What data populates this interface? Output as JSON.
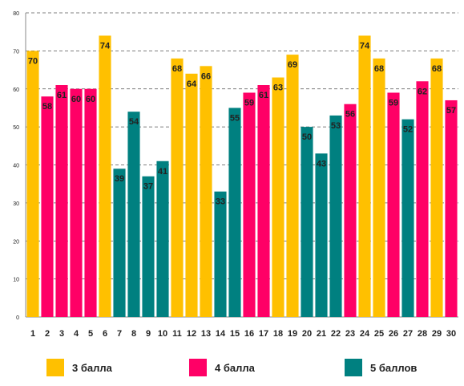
{
  "chart_data": {
    "type": "bar",
    "categories": [
      "1",
      "2",
      "3",
      "4",
      "5",
      "6",
      "7",
      "8",
      "9",
      "10",
      "11",
      "12",
      "13",
      "14",
      "15",
      "16",
      "17",
      "18",
      "19",
      "20",
      "21",
      "22",
      "23",
      "24",
      "25",
      "26",
      "27",
      "28",
      "29",
      "30"
    ],
    "values": [
      70,
      58,
      61,
      60,
      60,
      74,
      39,
      54,
      37,
      41,
      68,
      64,
      66,
      33,
      55,
      59,
      61,
      63,
      69,
      50,
      43,
      53,
      56,
      74,
      68,
      59,
      52,
      62,
      68,
      57
    ],
    "groups": [
      3,
      4,
      4,
      4,
      4,
      3,
      5,
      5,
      5,
      5,
      3,
      3,
      3,
      5,
      5,
      4,
      4,
      3,
      3,
      5,
      5,
      5,
      4,
      3,
      3,
      4,
      5,
      4,
      3,
      4
    ],
    "ylim": [
      0,
      80
    ],
    "yticks": [
      0,
      10,
      20,
      30,
      40,
      50,
      60,
      70,
      80
    ],
    "grid": "horizontal dashed",
    "legend_position": "bottom",
    "legend": [
      {
        "group": 3,
        "label": "3 балла",
        "color": "#FFC000"
      },
      {
        "group": 4,
        "label": "4 балла",
        "color": "#FF0066"
      },
      {
        "group": 5,
        "label": "5 баллов",
        "color": "#008080"
      }
    ],
    "title": "",
    "xlabel": "",
    "ylabel": ""
  }
}
